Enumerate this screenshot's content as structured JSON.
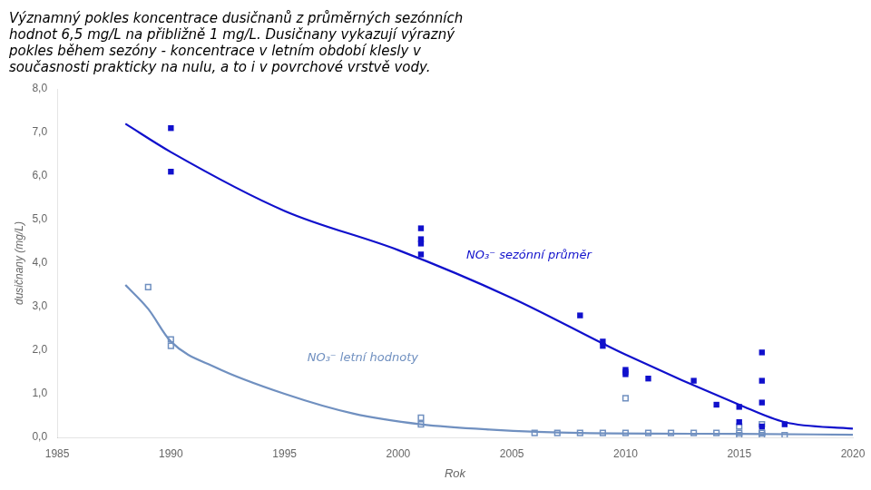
{
  "chart_data": {
    "type": "scatter",
    "subtitle": [
      "Významný pokles koncentrace dusičnanů z průměrných sezónních",
      "hodnot 6,5 mg/L na přibližně 1 mg/L. Dusičnany vykazují výrazný",
      "pokles během sezóny - koncentrace v letním období klesly v",
      "současnosti prakticky na nulu, a to i v povrchové vrstvě vody."
    ],
    "xlabel": "Rok",
    "ylabel": "dusičnany (mg/L)",
    "xlim": [
      1985,
      2020
    ],
    "xticks": [
      1985,
      1990,
      1995,
      2000,
      2005,
      2010,
      2015,
      2020
    ],
    "ylim": [
      0.0,
      8.0
    ],
    "yticks": [
      {
        "value": 0.0,
        "label": "0,0"
      },
      {
        "value": 1.0,
        "label": "1,0"
      },
      {
        "value": 2.0,
        "label": "2,0"
      },
      {
        "value": 3.0,
        "label": "3,0"
      },
      {
        "value": 4.0,
        "label": "4,0"
      },
      {
        "value": 5.0,
        "label": "5,0"
      },
      {
        "value": 6.0,
        "label": "6,0"
      },
      {
        "value": 7.0,
        "label": "7,0"
      },
      {
        "value": 8.0,
        "label": "8,0"
      }
    ],
    "grid": false,
    "series": [
      {
        "type": "line",
        "color": "#1010cc",
        "marker": "none",
        "line_style": "smooth",
        "x": [
          1988,
          1990,
          1995,
          2000,
          2005,
          2010,
          2015,
          2017,
          2020
        ],
        "values": [
          7.2,
          6.55,
          5.2,
          4.3,
          3.2,
          1.9,
          0.75,
          0.35,
          0.2
        ]
      },
      {
        "type": "line",
        "color": "#7090c0",
        "marker": "none",
        "line_style": "smooth",
        "x": [
          1988,
          1989,
          1990,
          1992,
          1995,
          1998,
          2001,
          2004,
          2008,
          2015,
          2020
        ],
        "values": [
          3.5,
          2.95,
          2.2,
          1.6,
          1.0,
          0.55,
          0.3,
          0.18,
          0.1,
          0.08,
          0.06
        ]
      },
      {
        "type": "scatter",
        "color": "#1010cc",
        "marker": "square",
        "x": [
          1990,
          1990,
          2001,
          2001,
          2001,
          2001,
          2008,
          2009,
          2009,
          2010,
          2010,
          2010,
          2011,
          2013,
          2014,
          2015,
          2015,
          2016,
          2016,
          2016,
          2016,
          2017
        ],
        "values": [
          7.1,
          6.1,
          4.8,
          4.55,
          4.45,
          4.2,
          2.8,
          2.2,
          2.1,
          1.55,
          1.5,
          1.45,
          1.35,
          1.3,
          0.75,
          0.7,
          0.35,
          1.95,
          1.3,
          0.8,
          0.25,
          0.3
        ]
      },
      {
        "type": "scatter",
        "color": "#7090c0",
        "marker": "square-open",
        "x": [
          1989,
          1990,
          1990,
          2001,
          2001,
          2006,
          2007,
          2008,
          2009,
          2010,
          2010,
          2011,
          2012,
          2013,
          2014,
          2015,
          2015,
          2015,
          2016,
          2016,
          2016,
          2016,
          2017
        ],
        "values": [
          3.45,
          2.25,
          2.1,
          0.45,
          0.3,
          0.1,
          0.1,
          0.1,
          0.1,
          0.9,
          0.1,
          0.1,
          0.1,
          0.1,
          0.1,
          0.25,
          0.1,
          0.05,
          0.1,
          0.3,
          0.1,
          0.05,
          0.05
        ]
      }
    ],
    "annotations": [
      {
        "text": "NO₃⁻ sezónní průměr",
        "x": 2003,
        "y": 4.1,
        "color": "#1010cc"
      },
      {
        "text": "NO₃⁻ letní hodnoty",
        "x": 1996,
        "y": 1.75,
        "color": "#7090c0"
      }
    ]
  }
}
